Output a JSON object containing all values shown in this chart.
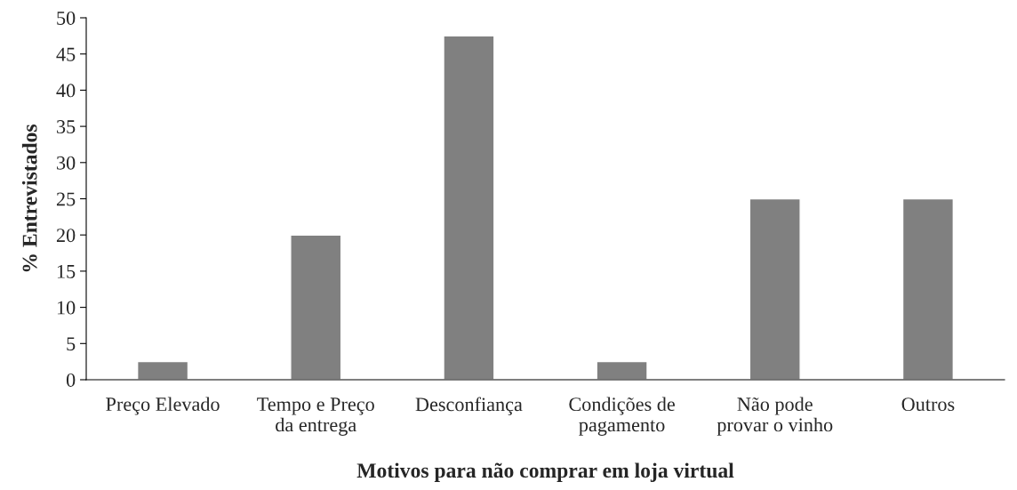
{
  "chart_data": {
    "type": "bar",
    "categories": [
      "Preço Elevado",
      "Tempo e Preço\nda entrega",
      "Desconfiança",
      "Condições de\npagamento",
      "Não pode\nprovar o vinho",
      "Outros"
    ],
    "values": [
      2.5,
      20,
      47.5,
      2.5,
      25,
      25
    ],
    "color": "#808080",
    "xlabel": "Motivos para não comprar em loja virtual",
    "ylabel": "% Entrevistados",
    "ylim": [
      0,
      50
    ],
    "yticks": [
      0,
      5,
      10,
      15,
      20,
      25,
      30,
      35,
      40,
      45,
      50
    ],
    "grid": false,
    "legend": false
  }
}
